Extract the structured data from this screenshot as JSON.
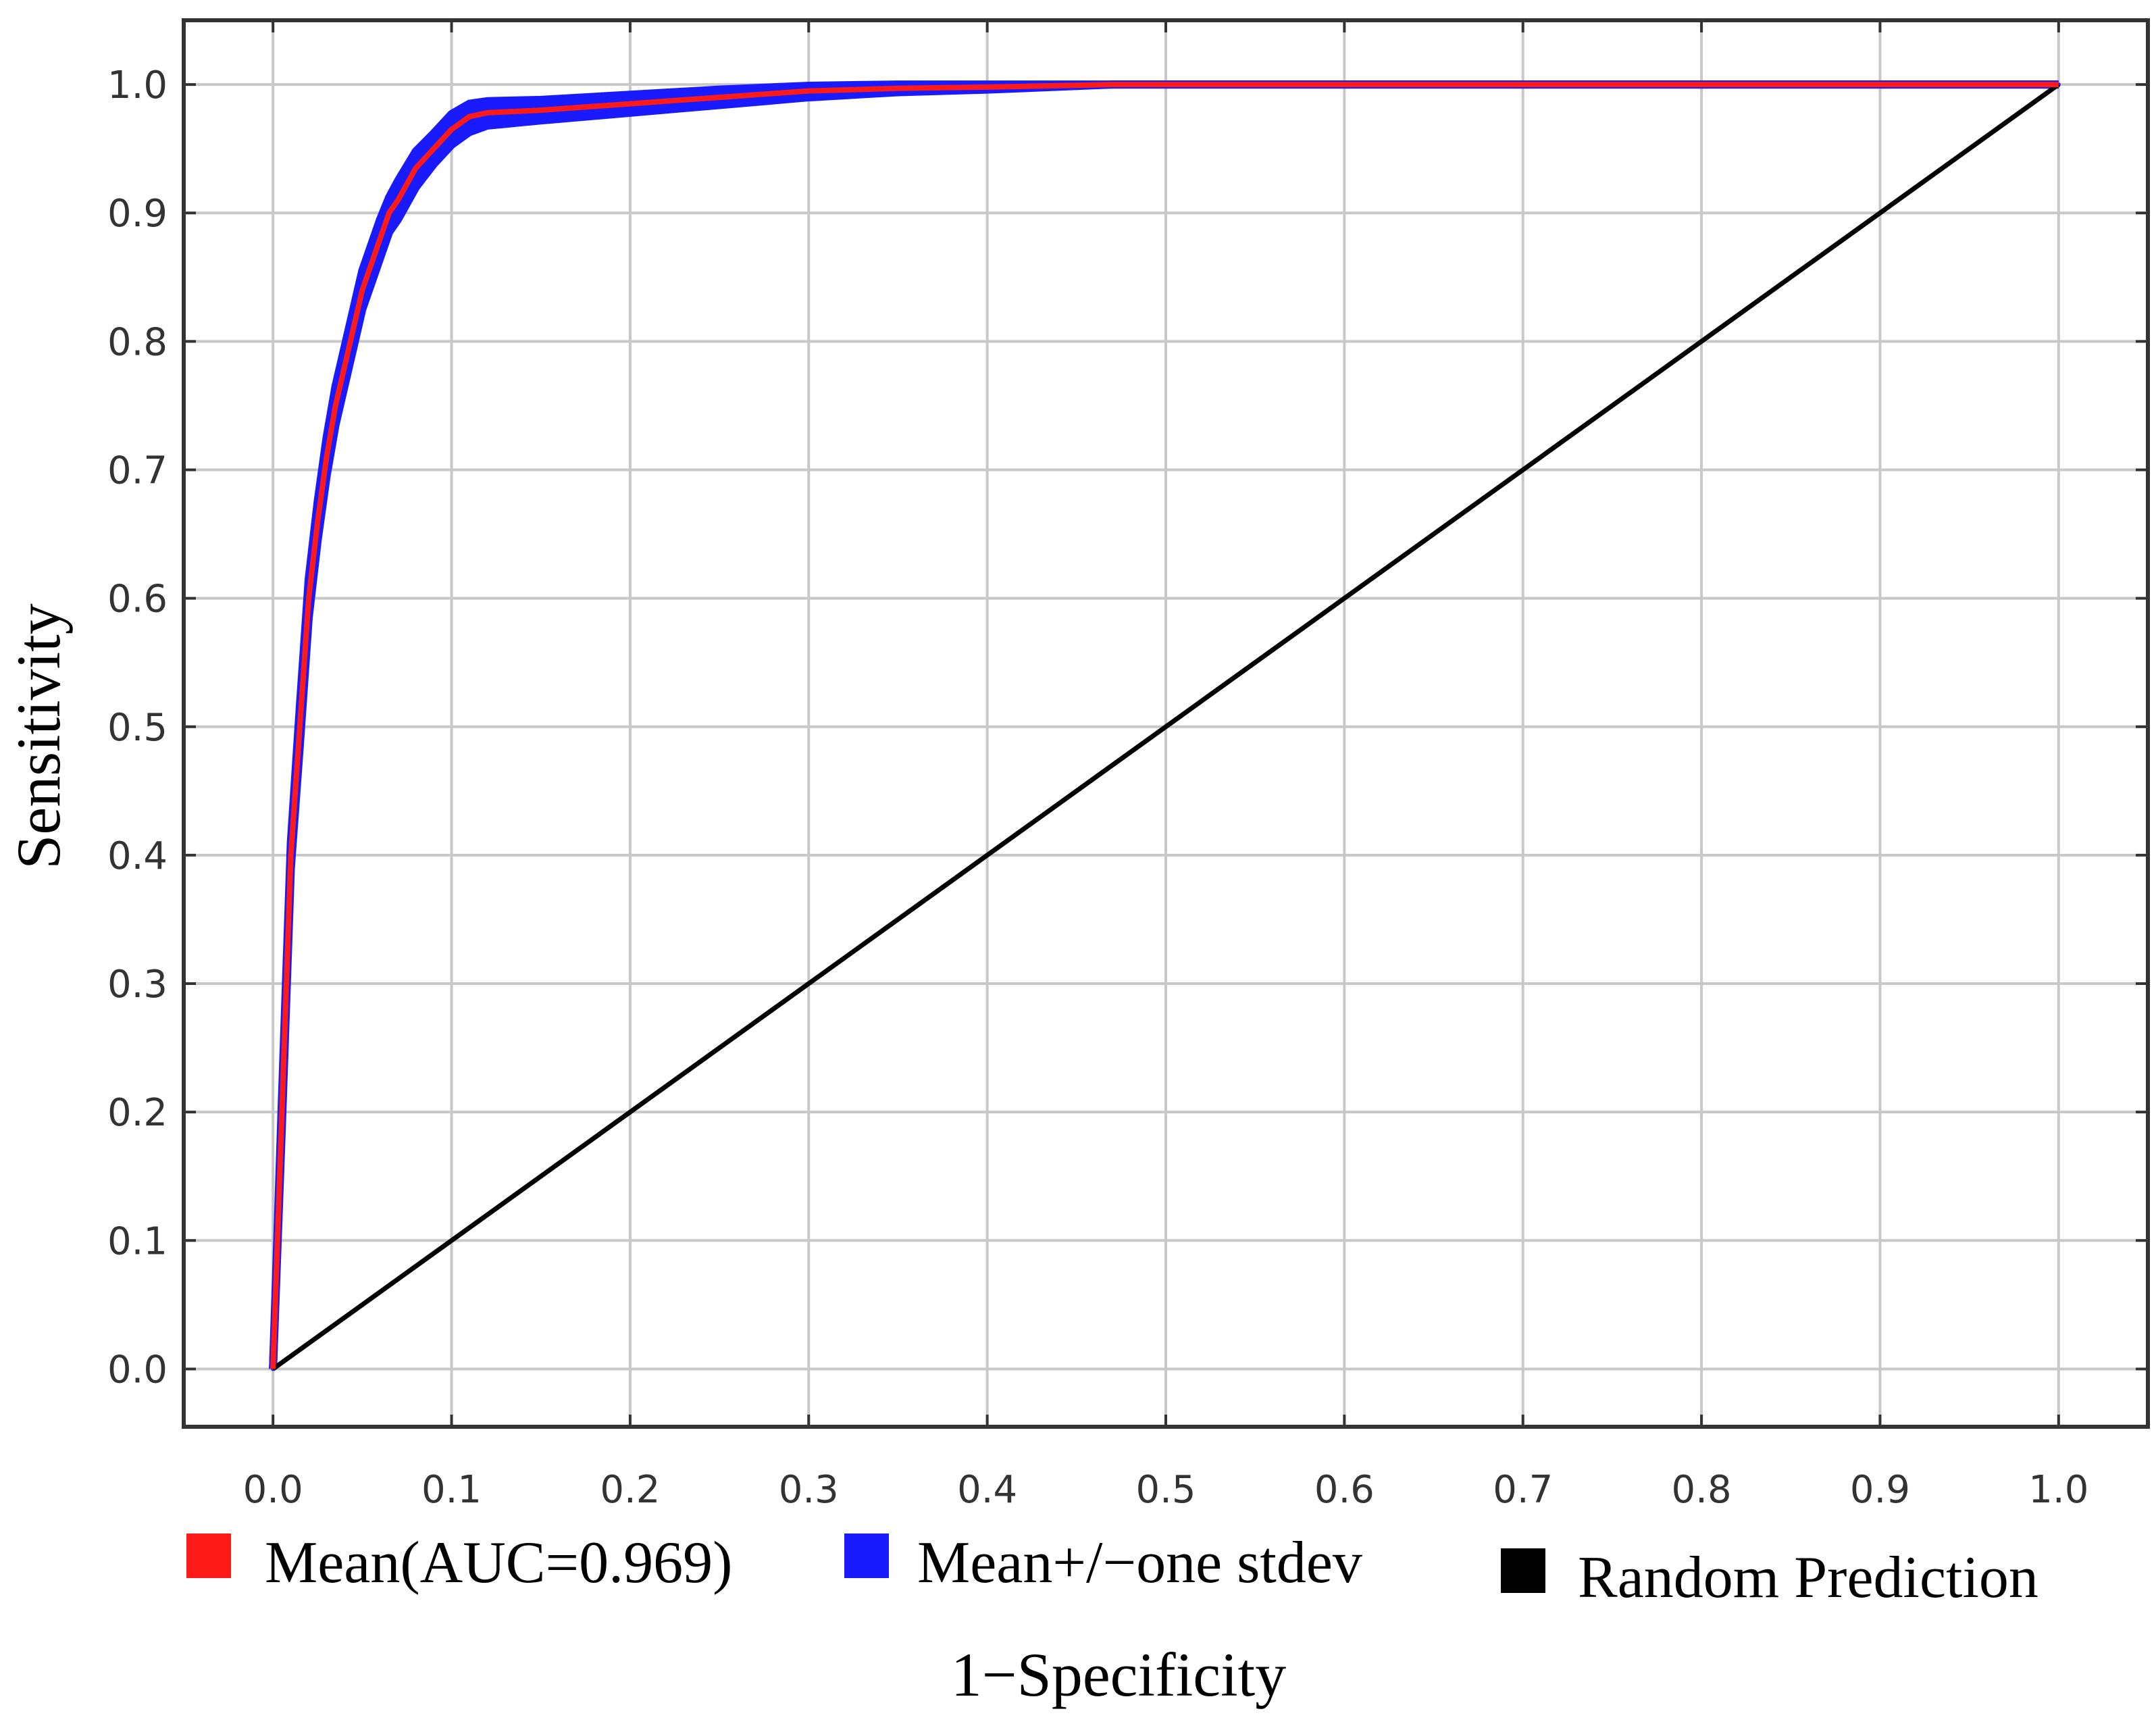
{
  "chart_data": {
    "type": "line",
    "title": "",
    "xlabel": "1−Specificity",
    "ylabel": "Sensitivity",
    "xlim": [
      -0.05,
      1.05
    ],
    "ylim": [
      -0.045,
      1.05
    ],
    "grid": true,
    "legend_position": "bottom",
    "x_ticks": [
      "0.0",
      "0.1",
      "0.2",
      "0.3",
      "0.4",
      "0.5",
      "0.6",
      "0.7",
      "0.8",
      "0.9",
      "1.0"
    ],
    "y_ticks": [
      "0.0",
      "0.1",
      "0.2",
      "0.3",
      "0.4",
      "0.5",
      "0.6",
      "0.7",
      "0.8",
      "0.9",
      "1.0"
    ],
    "series": [
      {
        "name": "Mean(AUC=0.969)",
        "color": "#ff1a1a",
        "x": [
          0.0,
          0.005,
          0.01,
          0.015,
          0.02,
          0.025,
          0.03,
          0.035,
          0.04,
          0.045,
          0.05,
          0.055,
          0.06,
          0.065,
          0.07,
          0.08,
          0.09,
          0.1,
          0.11,
          0.12,
          0.15,
          0.2,
          0.25,
          0.3,
          0.35,
          0.4,
          0.47,
          1.0
        ],
        "y": [
          0.0,
          0.2,
          0.4,
          0.5,
          0.6,
          0.66,
          0.71,
          0.75,
          0.78,
          0.81,
          0.84,
          0.86,
          0.88,
          0.9,
          0.91,
          0.935,
          0.95,
          0.965,
          0.975,
          0.978,
          0.98,
          0.985,
          0.99,
          0.995,
          0.997,
          0.998,
          1.0,
          1.0
        ]
      },
      {
        "name": "Mean+/−one stdev",
        "color": "#1a1aff",
        "upper": {
          "x": [
            0.0,
            0.005,
            0.01,
            0.015,
            0.02,
            0.025,
            0.03,
            0.035,
            0.04,
            0.045,
            0.05,
            0.055,
            0.06,
            0.065,
            0.07,
            0.08,
            0.09,
            0.1,
            0.11,
            0.12,
            0.15,
            0.2,
            0.25,
            0.3,
            0.35,
            0.4,
            0.47,
            1.0
          ],
          "y": [
            0.0,
            0.21,
            0.41,
            0.515,
            0.615,
            0.675,
            0.725,
            0.765,
            0.795,
            0.825,
            0.855,
            0.875,
            0.895,
            0.912,
            0.925,
            0.948,
            0.962,
            0.977,
            0.985,
            0.987,
            0.988,
            0.992,
            0.996,
            0.999,
            1.0,
            1.0,
            1.0,
            1.0
          ]
        },
        "lower": {
          "x": [
            0.0,
            0.005,
            0.01,
            0.015,
            0.02,
            0.025,
            0.03,
            0.035,
            0.04,
            0.045,
            0.05,
            0.055,
            0.06,
            0.065,
            0.07,
            0.08,
            0.09,
            0.1,
            0.11,
            0.12,
            0.15,
            0.2,
            0.25,
            0.3,
            0.35,
            0.4,
            0.47,
            1.0
          ],
          "y": [
            0.0,
            0.19,
            0.39,
            0.485,
            0.585,
            0.645,
            0.695,
            0.735,
            0.765,
            0.795,
            0.825,
            0.845,
            0.865,
            0.885,
            0.895,
            0.92,
            0.938,
            0.953,
            0.963,
            0.968,
            0.972,
            0.978,
            0.984,
            0.99,
            0.994,
            0.996,
            1.0,
            1.0
          ]
        }
      },
      {
        "name": "Random Prediction",
        "color": "#000000",
        "x": [
          0.0,
          1.0
        ],
        "y": [
          0.0,
          1.0
        ]
      }
    ]
  }
}
